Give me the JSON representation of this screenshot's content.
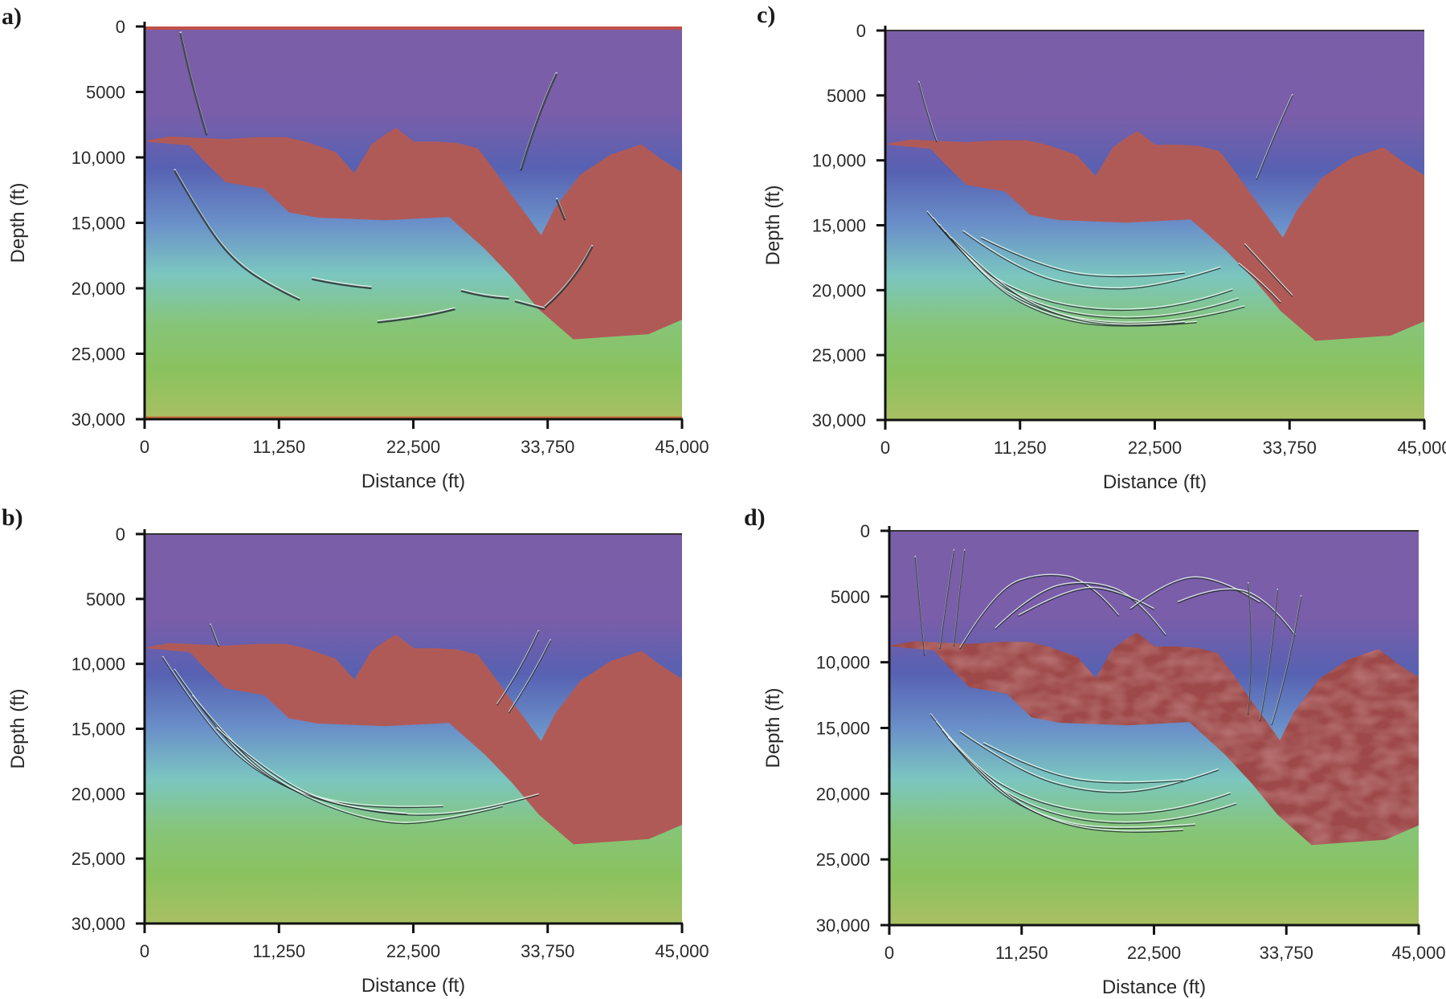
{
  "figure": {
    "panels": [
      "a",
      "b",
      "c",
      "d"
    ]
  },
  "colors": {
    "velocity_gradient": [
      "#7b5ea8",
      "#7a5ea9",
      "#5761b2",
      "#6a90c9",
      "#7bc6c0",
      "#86c578",
      "#8bc25e",
      "#a9c062"
    ],
    "salt": "#b05a58",
    "salt_dark": "#9e4a48",
    "axis": "#111111",
    "reflector_dark": "#1f2a2a",
    "reflector_light": "#e8f4f0"
  },
  "chart_data": [
    {
      "type": "heatmap",
      "panel_label": "a)",
      "title": "",
      "xlabel": "Distance (ft)",
      "ylabel": "Depth (ft)",
      "xlim": [
        0,
        45000
      ],
      "ylim": [
        30000,
        0
      ],
      "xticks": [
        0,
        11250,
        22500,
        33750,
        45000
      ],
      "xtick_labels": [
        "0",
        "11,250",
        "22,500",
        "33,750",
        "45,000"
      ],
      "yticks": [
        0,
        5000,
        10000,
        15000,
        20000,
        25000,
        30000
      ],
      "ytick_labels": [
        "0",
        "5000",
        "10,000",
        "15,000",
        "20,000",
        "25,000",
        "30,000"
      ],
      "background": "velocity model (depth-increasing gradient purple→blue→teal→green)",
      "salt_body": "salt",
      "image_style": "sparse migrated reflector segments",
      "reflectors": [
        [
          [
            3000,
            500
          ],
          [
            3800,
            4000
          ],
          [
            5200,
            8300
          ]
        ],
        [
          [
            31500,
            11000
          ],
          [
            33000,
            6500
          ],
          [
            34500,
            3600
          ]
        ],
        [
          [
            2500,
            11000
          ],
          [
            4500,
            14200
          ],
          [
            7000,
            17500
          ],
          [
            10000,
            19600
          ],
          [
            13000,
            20900
          ]
        ],
        [
          [
            14000,
            19300
          ],
          [
            16500,
            19800
          ],
          [
            19000,
            20000
          ]
        ],
        [
          [
            19500,
            22600
          ],
          [
            23000,
            22300
          ],
          [
            26000,
            21600
          ]
        ],
        [
          [
            26500,
            20200
          ],
          [
            28500,
            20700
          ],
          [
            30500,
            20800
          ]
        ],
        [
          [
            31000,
            21000
          ],
          [
            33500,
            21600
          ]
        ],
        [
          [
            33500,
            21500
          ],
          [
            36000,
            19500
          ],
          [
            37500,
            16800
          ]
        ],
        [
          [
            34500,
            13200
          ],
          [
            35200,
            14800
          ]
        ]
      ],
      "edge_lines": true
    },
    {
      "type": "heatmap",
      "panel_label": "b)",
      "title": "",
      "xlabel": "Distance (ft)",
      "ylabel": "Depth (ft)",
      "xlim": [
        0,
        45000
      ],
      "ylim": [
        30000,
        0
      ],
      "xticks": [
        0,
        11250,
        22500,
        33750,
        45000
      ],
      "xtick_labels": [
        "0",
        "11,250",
        "22,500",
        "33,750",
        "45,000"
      ],
      "yticks": [
        0,
        5000,
        10000,
        15000,
        20000,
        25000,
        30000
      ],
      "ytick_labels": [
        "0",
        "5000",
        "10,000",
        "15,000",
        "20,000",
        "25,000",
        "30,000"
      ],
      "background": "velocity model",
      "salt_body": "salt",
      "image_style": "continuous arcuate reflectors below salt",
      "reflectors": [
        [
          [
            1500,
            9500
          ],
          [
            5000,
            14500
          ],
          [
            9000,
            18200
          ],
          [
            14000,
            20400
          ],
          [
            20000,
            21200
          ],
          [
            25000,
            21000
          ]
        ],
        [
          [
            2500,
            10500
          ],
          [
            6500,
            15800
          ],
          [
            11000,
            19300
          ],
          [
            16000,
            20900
          ],
          [
            22000,
            21800
          ],
          [
            28000,
            21400
          ],
          [
            33000,
            20100
          ]
        ],
        [
          [
            4000,
            12500
          ],
          [
            8000,
            17000
          ],
          [
            13000,
            20200
          ],
          [
            19000,
            22200
          ],
          [
            24000,
            22400
          ],
          [
            30000,
            21000
          ]
        ],
        [
          [
            6000,
            15000
          ],
          [
            11000,
            19000
          ],
          [
            17000,
            21300
          ],
          [
            22000,
            21600
          ]
        ],
        [
          [
            29500,
            13200
          ],
          [
            31500,
            10500
          ],
          [
            33000,
            7500
          ]
        ],
        [
          [
            30500,
            13800
          ],
          [
            32500,
            11000
          ],
          [
            34000,
            8200
          ]
        ],
        [
          [
            5500,
            7000
          ],
          [
            6200,
            8700
          ]
        ]
      ],
      "edge_lines": false
    },
    {
      "type": "heatmap",
      "panel_label": "c)",
      "title": "",
      "xlabel": "Distance (ft)",
      "ylabel": "Depth (ft)",
      "xlim": [
        0,
        45000
      ],
      "ylim": [
        30000,
        0
      ],
      "xticks": [
        0,
        11250,
        22500,
        33750,
        45000
      ],
      "xtick_labels": [
        "0",
        "11,250",
        "22,500",
        "33,750",
        "45,000"
      ],
      "yticks": [
        0,
        5000,
        10000,
        15000,
        20000,
        25000,
        30000
      ],
      "ytick_labels": [
        "0",
        "5000",
        "10,000",
        "15,000",
        "20,000",
        "25,000",
        "30,000"
      ],
      "background": "velocity model",
      "salt_body": "salt",
      "image_style": "dense wavelet reflector fan below salt",
      "reflectors": [
        [
          [
            3500,
            14000
          ],
          [
            7000,
            18000
          ],
          [
            12000,
            20600
          ],
          [
            18000,
            21700
          ],
          [
            25000,
            21300
          ],
          [
            29000,
            20000
          ]
        ],
        [
          [
            4000,
            14500
          ],
          [
            7500,
            18500
          ],
          [
            12500,
            21200
          ],
          [
            18500,
            22300
          ],
          [
            25500,
            21900
          ],
          [
            29500,
            20700
          ]
        ],
        [
          [
            4500,
            15000
          ],
          [
            8000,
            19000
          ],
          [
            13000,
            21700
          ],
          [
            19000,
            22700
          ],
          [
            26000,
            22300
          ],
          [
            30000,
            21300
          ]
        ],
        [
          [
            5000,
            15500
          ],
          [
            8500,
            19500
          ],
          [
            13500,
            22100
          ],
          [
            19500,
            23000
          ],
          [
            26000,
            22500
          ]
        ],
        [
          [
            5500,
            16000
          ],
          [
            9500,
            19700
          ],
          [
            14500,
            22100
          ],
          [
            20000,
            22900
          ],
          [
            25000,
            22500
          ]
        ],
        [
          [
            6500,
            15500
          ],
          [
            11000,
            18500
          ],
          [
            17000,
            20000
          ],
          [
            23000,
            19800
          ],
          [
            28000,
            18300
          ]
        ],
        [
          [
            8000,
            16000
          ],
          [
            13000,
            18300
          ],
          [
            19000,
            19200
          ],
          [
            25000,
            18700
          ]
        ],
        [
          [
            2800,
            4000
          ],
          [
            3500,
            6500
          ],
          [
            4300,
            8600
          ]
        ],
        [
          [
            31000,
            11500
          ],
          [
            32500,
            8000
          ],
          [
            34000,
            5000
          ]
        ],
        [
          [
            29500,
            18000
          ],
          [
            31500,
            19500
          ],
          [
            33000,
            21000
          ]
        ],
        [
          [
            30000,
            16500
          ],
          [
            32000,
            18500
          ],
          [
            34000,
            20500
          ]
        ]
      ],
      "edge_lines": false
    },
    {
      "type": "heatmap",
      "panel_label": "d)",
      "title": "",
      "xlabel": "Distance (ft)",
      "ylabel": "Depth (ft)",
      "xlim": [
        0,
        45000
      ],
      "ylim": [
        30000,
        0
      ],
      "xticks": [
        0,
        11250,
        22500,
        33750,
        45000
      ],
      "xtick_labels": [
        "0",
        "11,250",
        "22,500",
        "33,750",
        "45,000"
      ],
      "yticks": [
        0,
        5000,
        10000,
        15000,
        20000,
        25000,
        30000
      ],
      "ytick_labels": [
        "0",
        "5000",
        "10,000",
        "15,000",
        "20,000",
        "25,000",
        "30,000"
      ],
      "background": "velocity model",
      "salt_body": "salt_textured",
      "image_style": "dense reflector fan plus above-salt arcs and textured salt",
      "reflectors": [
        [
          [
            3500,
            14000
          ],
          [
            7000,
            18000
          ],
          [
            12000,
            20600
          ],
          [
            18000,
            21700
          ],
          [
            25000,
            21300
          ],
          [
            29000,
            20000
          ]
        ],
        [
          [
            4000,
            14600
          ],
          [
            7500,
            18600
          ],
          [
            12500,
            21300
          ],
          [
            18500,
            22400
          ],
          [
            25500,
            22000
          ],
          [
            29500,
            20800
          ]
        ],
        [
          [
            4500,
            15200
          ],
          [
            8000,
            19200
          ],
          [
            13000,
            21900
          ],
          [
            19000,
            22900
          ],
          [
            26000,
            22400
          ]
        ],
        [
          [
            5000,
            15800
          ],
          [
            9000,
            19700
          ],
          [
            14000,
            22300
          ],
          [
            20000,
            23100
          ],
          [
            25000,
            22800
          ]
        ],
        [
          [
            6000,
            15300
          ],
          [
            11000,
            18400
          ],
          [
            17000,
            20000
          ],
          [
            23000,
            19800
          ],
          [
            28000,
            18200
          ]
        ],
        [
          [
            8000,
            16200
          ],
          [
            13000,
            18500
          ],
          [
            19000,
            19400
          ],
          [
            25000,
            19000
          ]
        ],
        [
          [
            3000,
            9500
          ],
          [
            2500,
            5000
          ],
          [
            2200,
            2000
          ]
        ],
        [
          [
            4300,
            9000
          ],
          [
            5000,
            4500
          ],
          [
            5500,
            1500
          ]
        ],
        [
          [
            5500,
            8800
          ],
          [
            6000,
            4500
          ],
          [
            6400,
            1500
          ]
        ],
        [
          [
            6000,
            9000
          ],
          [
            9000,
            4500
          ],
          [
            13000,
            3200
          ],
          [
            17000,
            3800
          ],
          [
            19500,
            6500
          ]
        ],
        [
          [
            9000,
            7500
          ],
          [
            12500,
            4500
          ],
          [
            17000,
            3800
          ],
          [
            21000,
            5000
          ],
          [
            23500,
            8000
          ]
        ],
        [
          [
            11000,
            6500
          ],
          [
            15000,
            4500
          ],
          [
            19000,
            4300
          ],
          [
            22500,
            6000
          ]
        ],
        [
          [
            20500,
            6000
          ],
          [
            24000,
            3600
          ],
          [
            28000,
            3600
          ],
          [
            31500,
            5500
          ]
        ],
        [
          [
            24500,
            5500
          ],
          [
            28000,
            4200
          ],
          [
            32000,
            5000
          ],
          [
            34500,
            8000
          ]
        ],
        [
          [
            31500,
            14500
          ],
          [
            32500,
            10000
          ],
          [
            33000,
            4500
          ]
        ],
        [
          [
            32500,
            14800
          ],
          [
            34000,
            10500
          ],
          [
            35000,
            5000
          ]
        ],
        [
          [
            30500,
            14000
          ],
          [
            31000,
            9000
          ],
          [
            30500,
            4000
          ]
        ]
      ],
      "edge_lines": false
    }
  ],
  "salt_outline": [
    [
      200,
      8700
    ],
    [
      2150,
      8400
    ],
    [
      6800,
      8600
    ],
    [
      9500,
      8450
    ],
    [
      11800,
      8450
    ],
    [
      13500,
      8800
    ],
    [
      16000,
      9600
    ],
    [
      17550,
      11200
    ],
    [
      19000,
      9000
    ],
    [
      20200,
      8200
    ],
    [
      21050,
      7750
    ],
    [
      22550,
      8800
    ],
    [
      24600,
      8800
    ],
    [
      26200,
      8900
    ],
    [
      27900,
      9300
    ],
    [
      29300,
      11000
    ],
    [
      30600,
      12700
    ],
    [
      31900,
      14300
    ],
    [
      33200,
      15950
    ],
    [
      34400,
      13800
    ],
    [
      36500,
      11300
    ],
    [
      39000,
      9800
    ],
    [
      41600,
      9000
    ],
    [
      43200,
      10100
    ],
    [
      45000,
      11150
    ],
    [
      45000,
      22400
    ],
    [
      42200,
      23500
    ],
    [
      35900,
      23900
    ],
    [
      33000,
      21600
    ],
    [
      30800,
      19200
    ],
    [
      28500,
      17000
    ],
    [
      25500,
      14550
    ],
    [
      20200,
      14800
    ],
    [
      14500,
      14600
    ],
    [
      12100,
      14200
    ],
    [
      10000,
      12400
    ],
    [
      6800,
      11900
    ],
    [
      5000,
      10300
    ],
    [
      3800,
      9100
    ],
    [
      200,
      8800
    ]
  ]
}
